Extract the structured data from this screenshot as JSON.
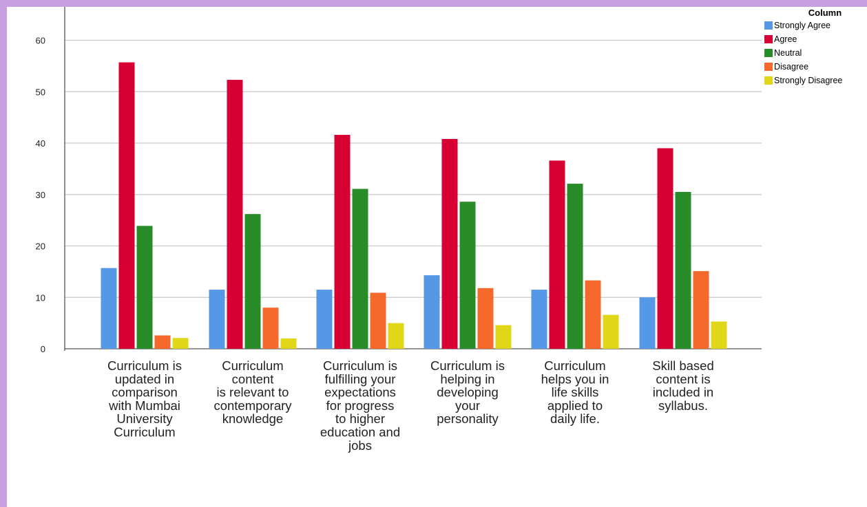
{
  "chart_data": {
    "type": "bar",
    "title": "",
    "xlabel": "",
    "ylabel": "",
    "ylim": [
      0,
      66
    ],
    "yticks": [
      0,
      10,
      20,
      30,
      40,
      50,
      60
    ],
    "grid": true,
    "legend_position": "top-right",
    "legend_title": "Column",
    "categories": [
      [
        "Curriculum is",
        "updated in",
        "comparison",
        "with Mumbai",
        "University",
        "Curriculum"
      ],
      [
        "Curriculum",
        "content",
        "is relevant to",
        "contemporary",
        "knowledge"
      ],
      [
        "Curriculum is",
        "fulfilling your",
        "expectations",
        "for progress",
        "to higher",
        "education and",
        "jobs"
      ],
      [
        "Curriculum is",
        "helping in",
        "developing",
        "your",
        "personality"
      ],
      [
        "Curriculum",
        "helps you in",
        "life skills",
        "applied to",
        "daily life."
      ],
      [
        "Skill based",
        "content is",
        "included in",
        "syllabus."
      ]
    ],
    "series": [
      {
        "name": "Strongly Agree",
        "color": "#5599e6",
        "values": [
          15.7,
          11.5,
          11.5,
          14.3,
          11.5,
          10.0
        ]
      },
      {
        "name": "Agree",
        "color": "#d60032",
        "values": [
          55.7,
          52.3,
          41.6,
          40.8,
          36.6,
          39.0
        ]
      },
      {
        "name": "Neutral",
        "color": "#288c28",
        "values": [
          23.9,
          26.2,
          31.1,
          28.6,
          32.1,
          30.5
        ]
      },
      {
        "name": "Disagree",
        "color": "#f5692d",
        "values": [
          2.6,
          8.0,
          10.9,
          11.8,
          13.3,
          15.1
        ]
      },
      {
        "name": "Strongly Disagree",
        "color": "#e0d718",
        "values": [
          2.1,
          2.0,
          5.0,
          4.6,
          6.6,
          5.3
        ]
      }
    ]
  }
}
